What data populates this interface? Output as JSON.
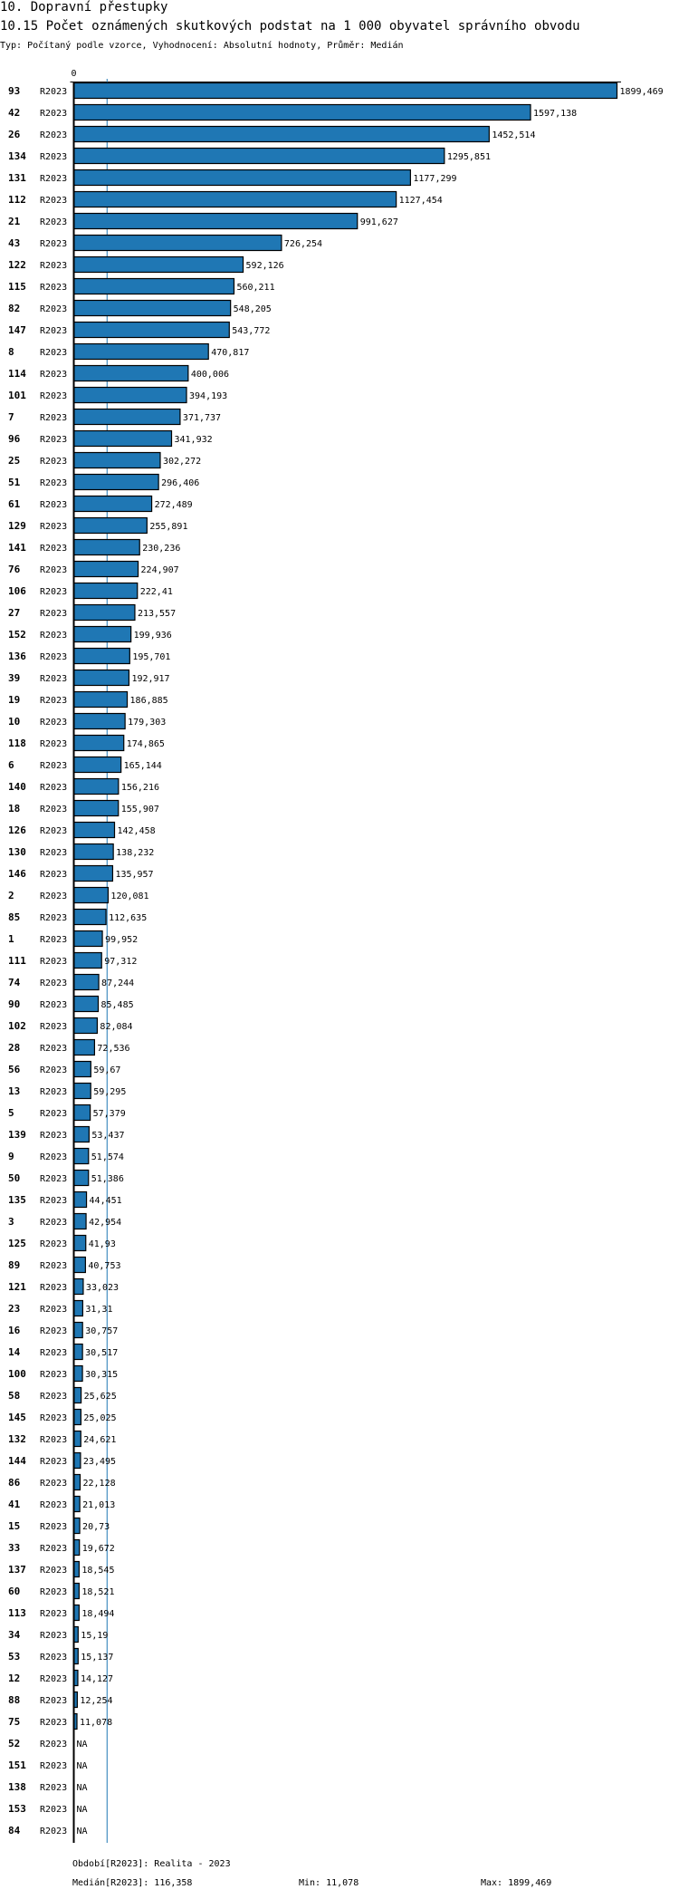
{
  "header": {
    "section": "10. Dopravní přestupky",
    "title": "10.15 Počet oznámených skutkových podstat na 1 000 obyvatel správního obvodu",
    "subtitle": "Typ: Počítaný podle vzorce, Vyhodnocení: Absolutní hodnoty, Průměr: Medián"
  },
  "chart_data": {
    "type": "bar",
    "orientation": "horizontal",
    "title": "10.15 Počet oznámených skutkových podstat na 1 000 obyvatel správního obvodu",
    "axis_zero_label": "0",
    "period_label": "R2023",
    "xlim": [
      0,
      1899.469
    ],
    "median": 116.358,
    "na_label": "NA",
    "bar_color": "#1f77b4",
    "median_color": "#1f77b4",
    "categories": [
      "93",
      "42",
      "26",
      "134",
      "131",
      "112",
      "21",
      "43",
      "122",
      "115",
      "82",
      "147",
      "8",
      "114",
      "101",
      "7",
      "96",
      "25",
      "51",
      "61",
      "129",
      "141",
      "76",
      "106",
      "27",
      "152",
      "136",
      "39",
      "19",
      "10",
      "118",
      "6",
      "140",
      "18",
      "126",
      "130",
      "146",
      "2",
      "85",
      "1",
      "111",
      "74",
      "90",
      "102",
      "28",
      "56",
      "13",
      "5",
      "139",
      "9",
      "50",
      "135",
      "3",
      "125",
      "89",
      "121",
      "23",
      "16",
      "14",
      "100",
      "58",
      "145",
      "132",
      "144",
      "86",
      "41",
      "15",
      "33",
      "137",
      "60",
      "113",
      "34",
      "53",
      "12",
      "88",
      "75",
      "52",
      "151",
      "138",
      "153",
      "84"
    ],
    "values": [
      1899.469,
      1597.138,
      1452.514,
      1295.851,
      1177.299,
      1127.454,
      991.627,
      726.254,
      592.126,
      560.211,
      548.205,
      543.772,
      470.817,
      400.006,
      394.193,
      371.737,
      341.932,
      302.272,
      296.406,
      272.489,
      255.891,
      230.236,
      224.907,
      222.41,
      213.557,
      199.936,
      195.701,
      192.917,
      186.885,
      179.303,
      174.865,
      165.144,
      156.216,
      155.907,
      142.458,
      138.232,
      135.957,
      120.081,
      112.635,
      99.952,
      97.312,
      87.244,
      85.485,
      82.084,
      72.536,
      59.67,
      59.295,
      57.379,
      53.437,
      51.574,
      51.386,
      44.451,
      42.954,
      41.93,
      40.753,
      33.023,
      31.31,
      30.757,
      30.517,
      30.315,
      25.625,
      25.025,
      24.621,
      23.495,
      22.128,
      21.013,
      20.73,
      19.672,
      18.545,
      18.521,
      18.494,
      15.19,
      15.137,
      14.127,
      12.254,
      11.078,
      null,
      null,
      null,
      null,
      null
    ]
  },
  "footer": {
    "period": "Období[R2023]: Realita - 2023",
    "median": "Medián[R2023]: 116,358",
    "min": "Min: 11,078",
    "max": "Max: 1899,469"
  }
}
